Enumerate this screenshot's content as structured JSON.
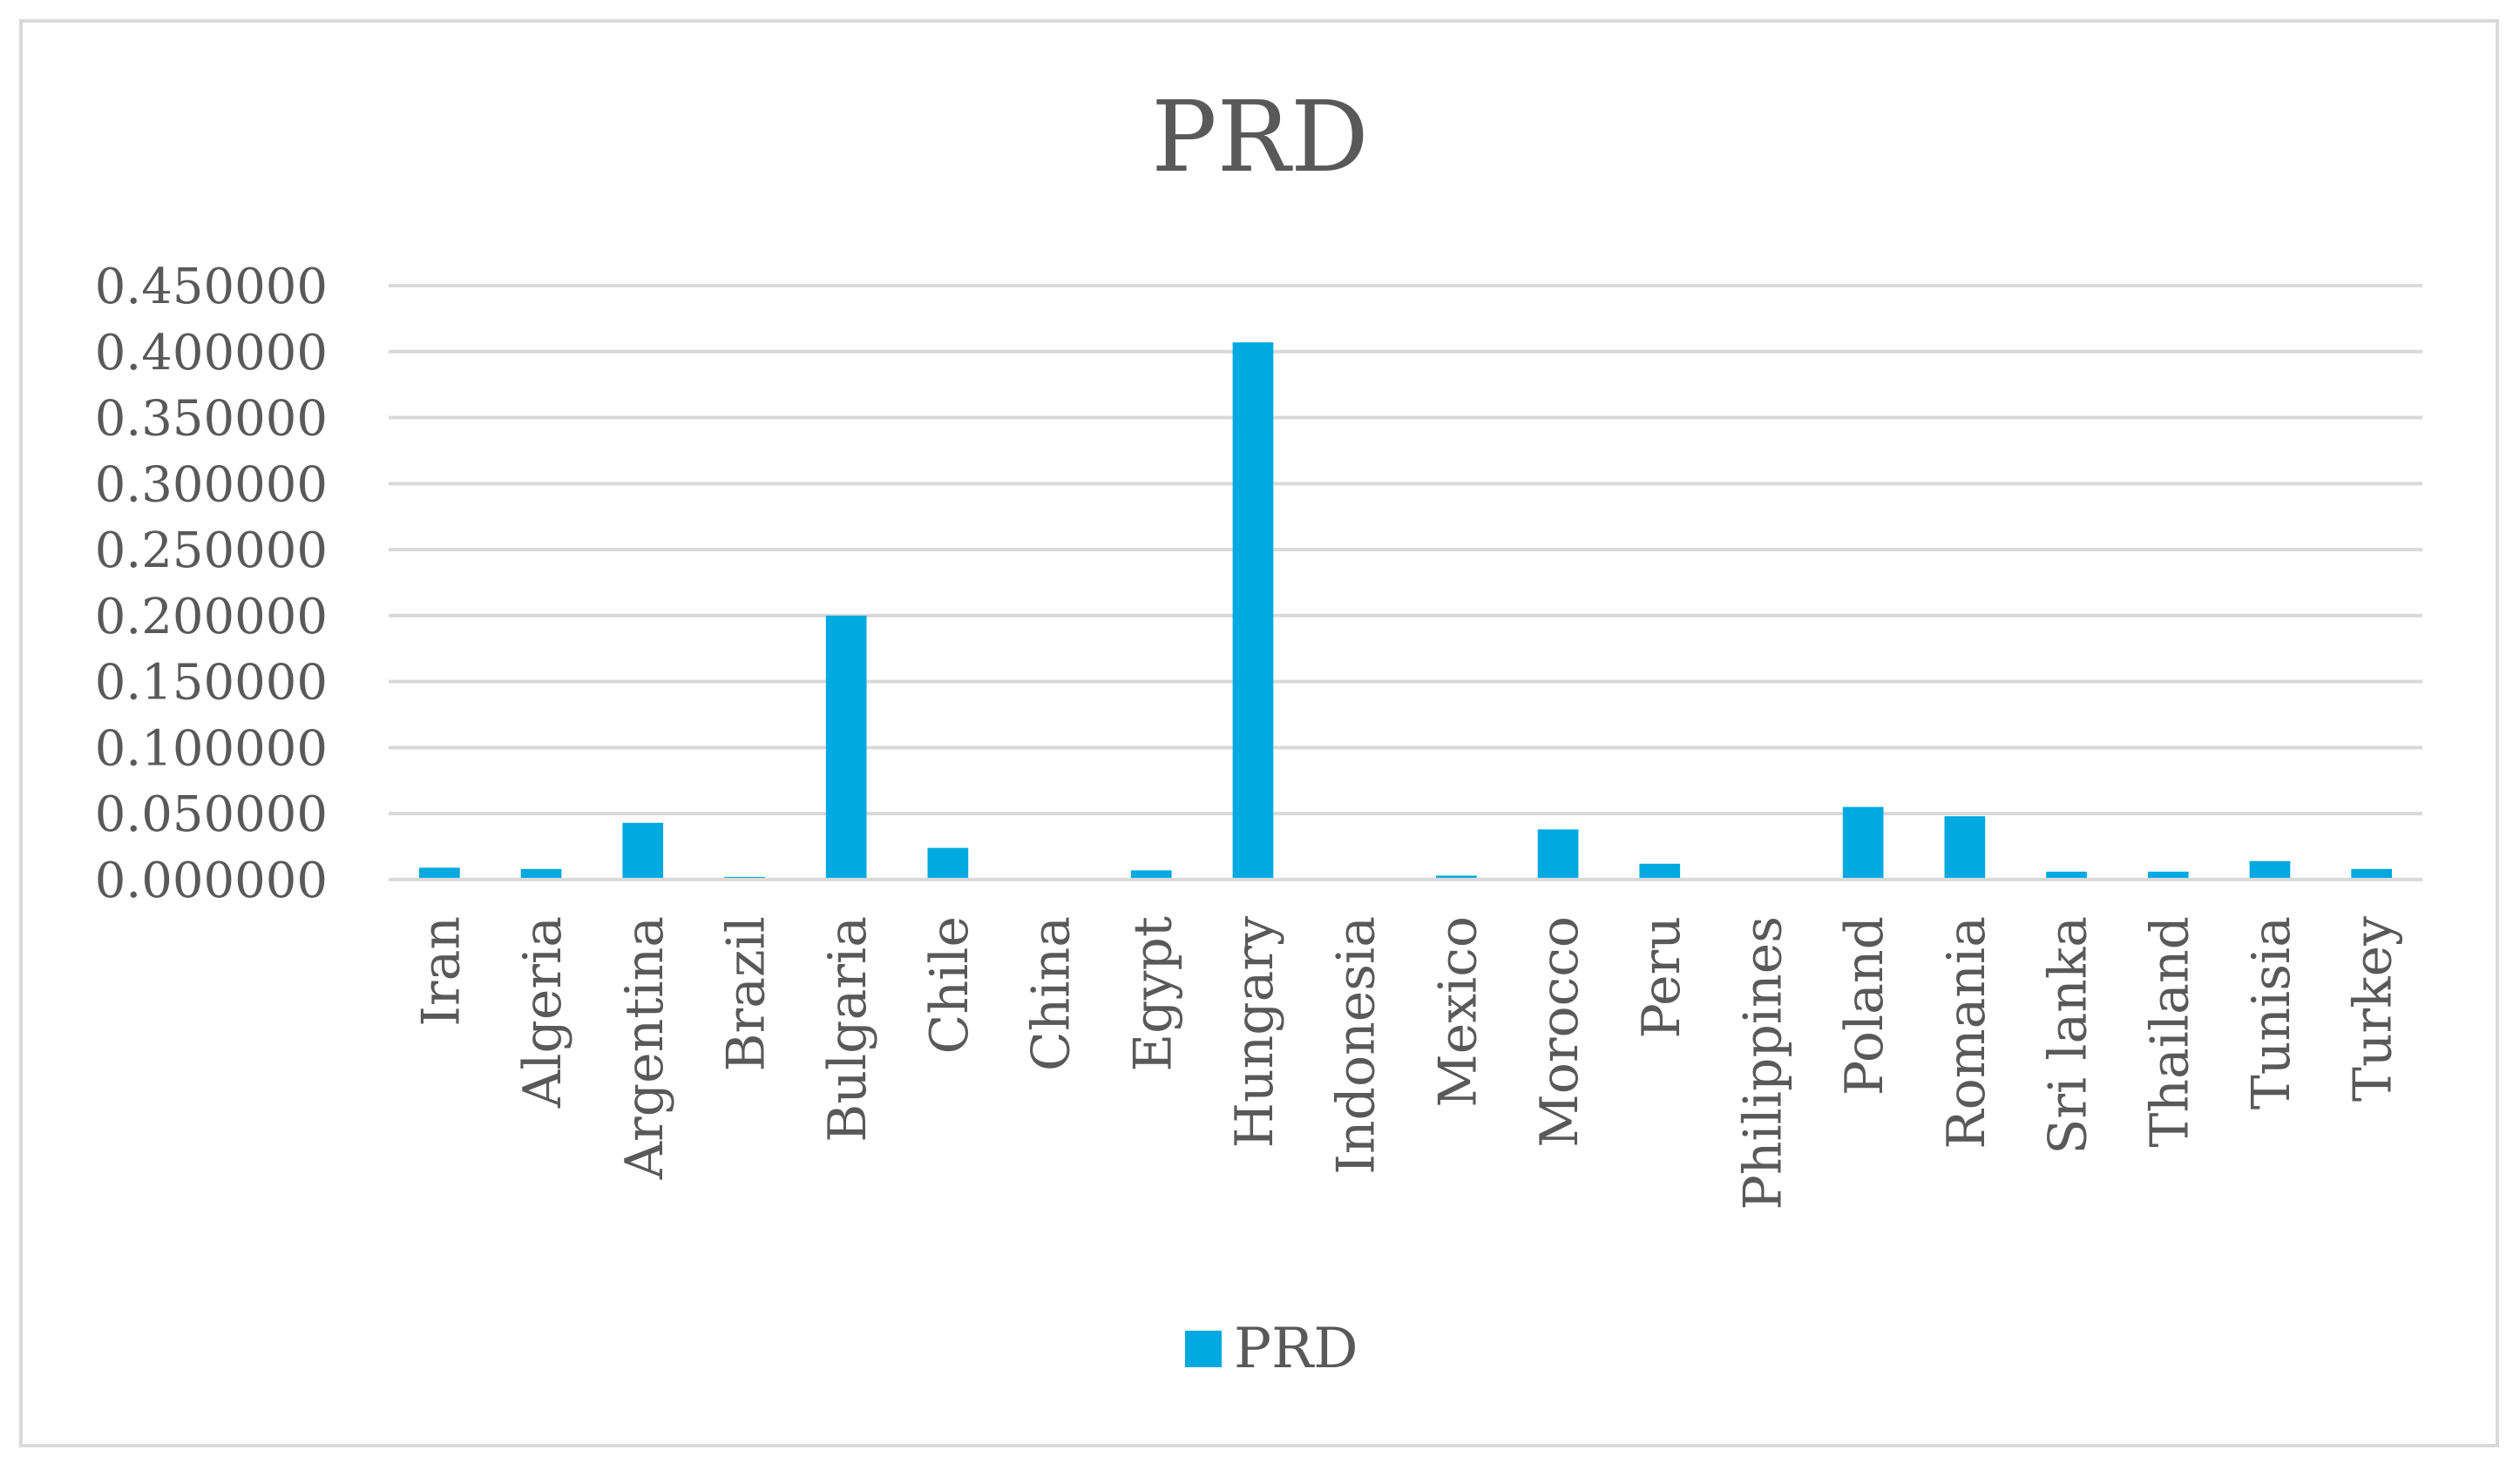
{
  "chart_data": {
    "type": "bar",
    "title": "PRD",
    "xlabel": "",
    "ylabel": "",
    "ylim": [
      0,
      0.45
    ],
    "yticks": [
      "0.000000",
      "0.050000",
      "0.100000",
      "0.150000",
      "0.200000",
      "0.250000",
      "0.300000",
      "0.350000",
      "0.400000",
      "0.450000"
    ],
    "grid": true,
    "legend_position": "bottom",
    "color": "#00a9e0",
    "categories": [
      "Iran",
      "Algeria",
      "Argentina",
      "Brazil",
      "Bulgaria",
      "Chile",
      "China",
      "Egypt",
      "Hungary",
      "Indonesia",
      "Mexico",
      "Morocco",
      "Peru",
      "Philippines",
      "Poland",
      "Romania",
      "Sri lanka",
      "Thailand",
      "Tunisia",
      "Turkey"
    ],
    "series": [
      {
        "name": "PRD",
        "values": [
          0.009,
          0.008,
          0.043,
          0.002,
          0.2,
          0.024,
          0.0,
          0.007,
          0.407,
          0.0,
          0.003,
          0.038,
          0.012,
          0.0,
          0.055,
          0.048,
          0.006,
          0.006,
          0.014,
          0.008
        ]
      }
    ]
  }
}
